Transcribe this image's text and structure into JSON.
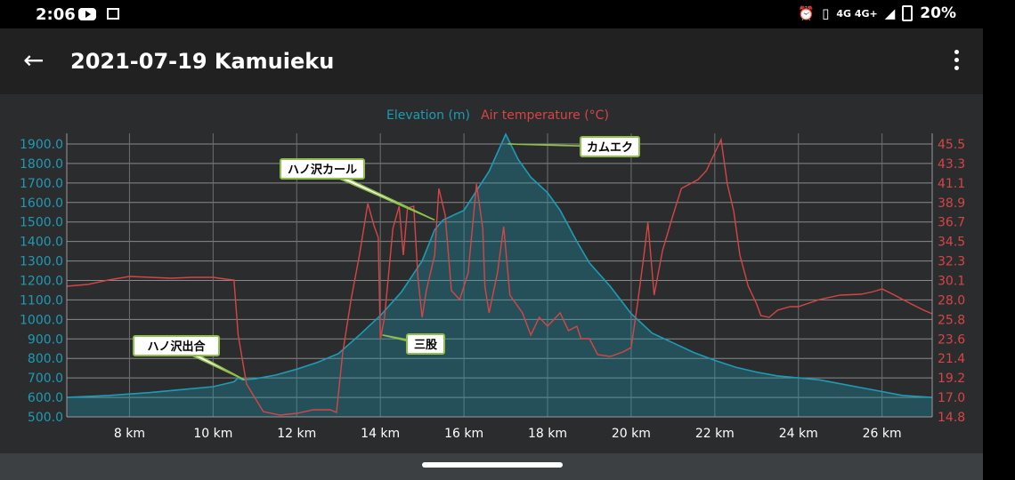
{
  "status_bar": {
    "time": "2:06",
    "signal": "4G 4G+",
    "battery": "20%"
  },
  "toolbar": {
    "title": "2021-07-19 Kamuieku",
    "back_icon": "arrow-left-icon",
    "menu_icon": "more-vert-icon"
  },
  "colors": {
    "elevation": "#1e9bb4",
    "temperature": "#d64545",
    "annotation_border": "#8fbf4a",
    "background": "#2b2c2e"
  },
  "chart_data": {
    "type": "area",
    "legend_position": "top-center",
    "grid": true,
    "x": {
      "min": 6.5,
      "max": 27.2,
      "ticks": [
        8,
        10,
        12,
        14,
        16,
        18,
        20,
        22,
        24,
        26
      ],
      "tick_labels": [
        "8 km",
        "10 km",
        "12 km",
        "14 km",
        "16 km",
        "18 km",
        "20 km",
        "22 km",
        "24 km",
        "26 km"
      ]
    },
    "y_left": {
      "min": 500,
      "max": 1900,
      "ticks": [
        500,
        600,
        700,
        800,
        900,
        1000,
        1100,
        1200,
        1300,
        1400,
        1500,
        1600,
        1700,
        1800,
        1900
      ],
      "tick_labels": [
        "500.0",
        "600.0",
        "700.0",
        "800.0",
        "900.0",
        "1000.0",
        "1100.0",
        "1200.0",
        "1300.0",
        "1400.0",
        "1500.0",
        "1600.0",
        "1700.0",
        "1800.0",
        "1900.0"
      ]
    },
    "y_right": {
      "min": 14.8,
      "max": 45.5,
      "tick_labels": [
        "14.8",
        "17.0",
        "19.2",
        "21.4",
        "23.6",
        "25.8",
        "28.0",
        "30.1",
        "32.3",
        "34.5",
        "36.7",
        "38.9",
        "41.1",
        "43.3",
        "45.5"
      ]
    },
    "series": [
      {
        "name": "Elevation (m)",
        "axis": "left",
        "color": "#1e9bb4",
        "points": [
          [
            6.5,
            600
          ],
          [
            7.5,
            610
          ],
          [
            8.5,
            625
          ],
          [
            9.5,
            645
          ],
          [
            10.0,
            655
          ],
          [
            10.5,
            680
          ],
          [
            10.6,
            700
          ],
          [
            10.7,
            690
          ],
          [
            11.0,
            695
          ],
          [
            11.5,
            715
          ],
          [
            12.0,
            745
          ],
          [
            12.5,
            780
          ],
          [
            13.0,
            825
          ],
          [
            13.5,
            920
          ],
          [
            14.0,
            1020
          ],
          [
            14.5,
            1140
          ],
          [
            15.0,
            1300
          ],
          [
            15.3,
            1460
          ],
          [
            15.5,
            1510
          ],
          [
            16.0,
            1560
          ],
          [
            16.3,
            1660
          ],
          [
            16.6,
            1760
          ],
          [
            17.0,
            1950
          ],
          [
            17.3,
            1820
          ],
          [
            17.6,
            1730
          ],
          [
            18.0,
            1650
          ],
          [
            18.3,
            1560
          ],
          [
            18.7,
            1400
          ],
          [
            19.0,
            1290
          ],
          [
            19.5,
            1170
          ],
          [
            20.0,
            1030
          ],
          [
            20.5,
            930
          ],
          [
            21.0,
            880
          ],
          [
            21.5,
            830
          ],
          [
            22.0,
            790
          ],
          [
            22.5,
            755
          ],
          [
            23.0,
            730
          ],
          [
            23.5,
            710
          ],
          [
            24.0,
            700
          ],
          [
            24.5,
            690
          ],
          [
            25.0,
            670
          ],
          [
            25.5,
            650
          ],
          [
            26.0,
            630
          ],
          [
            26.5,
            610
          ],
          [
            27.2,
            600
          ]
        ]
      },
      {
        "name": "Air temperature (°C)",
        "axis": "right",
        "color": "#d64545",
        "points": [
          [
            6.5,
            29.5
          ],
          [
            7.0,
            29.7
          ],
          [
            7.5,
            30.2
          ],
          [
            8.0,
            30.6
          ],
          [
            8.5,
            30.5
          ],
          [
            9.0,
            30.4
          ],
          [
            9.5,
            30.5
          ],
          [
            10.0,
            30.5
          ],
          [
            10.3,
            30.3
          ],
          [
            10.5,
            30.2
          ],
          [
            10.6,
            24.0
          ],
          [
            10.8,
            18.5
          ],
          [
            11.2,
            15.4
          ],
          [
            11.6,
            15.0
          ],
          [
            12.0,
            15.2
          ],
          [
            12.4,
            15.6
          ],
          [
            12.8,
            15.6
          ],
          [
            12.95,
            15.3
          ],
          [
            13.1,
            22.0
          ],
          [
            13.3,
            28.0
          ],
          [
            13.5,
            33.0
          ],
          [
            13.7,
            38.8
          ],
          [
            13.85,
            36.3
          ],
          [
            13.95,
            35.0
          ],
          [
            14.0,
            23.5
          ],
          [
            14.1,
            26.0
          ],
          [
            14.3,
            36.0
          ],
          [
            14.45,
            38.5
          ],
          [
            14.55,
            33.0
          ],
          [
            14.65,
            38.3
          ],
          [
            14.8,
            38.5
          ],
          [
            14.9,
            30.5
          ],
          [
            15.0,
            26.0
          ],
          [
            15.1,
            29.0
          ],
          [
            15.3,
            33.0
          ],
          [
            15.4,
            40.5
          ],
          [
            15.55,
            37.5
          ],
          [
            15.7,
            29.0
          ],
          [
            15.9,
            28.0
          ],
          [
            16.1,
            31.0
          ],
          [
            16.3,
            41.0
          ],
          [
            16.45,
            36.0
          ],
          [
            16.5,
            29.5
          ],
          [
            16.6,
            26.5
          ],
          [
            16.8,
            31.0
          ],
          [
            16.95,
            36.2
          ],
          [
            17.1,
            28.5
          ],
          [
            17.4,
            26.5
          ],
          [
            17.6,
            24.0
          ],
          [
            17.8,
            26.0
          ],
          [
            18.0,
            25.0
          ],
          [
            18.3,
            26.5
          ],
          [
            18.5,
            24.5
          ],
          [
            18.7,
            25.0
          ],
          [
            18.8,
            23.6
          ],
          [
            19.0,
            23.6
          ],
          [
            19.2,
            21.8
          ],
          [
            19.5,
            21.6
          ],
          [
            19.8,
            22.1
          ],
          [
            20.0,
            22.6
          ],
          [
            20.15,
            27.5
          ],
          [
            20.3,
            32.8
          ],
          [
            20.4,
            36.7
          ],
          [
            20.55,
            28.5
          ],
          [
            20.75,
            33.5
          ],
          [
            21.0,
            37.5
          ],
          [
            21.2,
            40.5
          ],
          [
            21.4,
            41.0
          ],
          [
            21.6,
            41.5
          ],
          [
            21.8,
            42.5
          ],
          [
            22.0,
            44.5
          ],
          [
            22.15,
            46.0
          ],
          [
            22.3,
            41.0
          ],
          [
            22.45,
            38.0
          ],
          [
            22.6,
            33.0
          ],
          [
            22.8,
            29.5
          ],
          [
            23.0,
            27.5
          ],
          [
            23.1,
            26.2
          ],
          [
            23.3,
            26.0
          ],
          [
            23.5,
            26.8
          ],
          [
            23.8,
            27.2
          ],
          [
            24.0,
            27.2
          ],
          [
            24.5,
            28.0
          ],
          [
            25.0,
            28.5
          ],
          [
            25.5,
            28.6
          ],
          [
            25.8,
            28.9
          ],
          [
            26.0,
            29.2
          ],
          [
            26.3,
            28.5
          ],
          [
            26.7,
            27.5
          ],
          [
            27.0,
            26.8
          ],
          [
            27.2,
            26.4
          ]
        ]
      }
    ],
    "annotations": [
      {
        "label": "ハノ沢出合",
        "x": 10.75,
        "y": 690
      },
      {
        "label": "ハノ沢カール",
        "x": 15.3,
        "y": 1510
      },
      {
        "label": "カムエク",
        "x": 17.05,
        "y": 1900
      },
      {
        "label": "三股",
        "x": 14.05,
        "y": 920
      }
    ]
  }
}
